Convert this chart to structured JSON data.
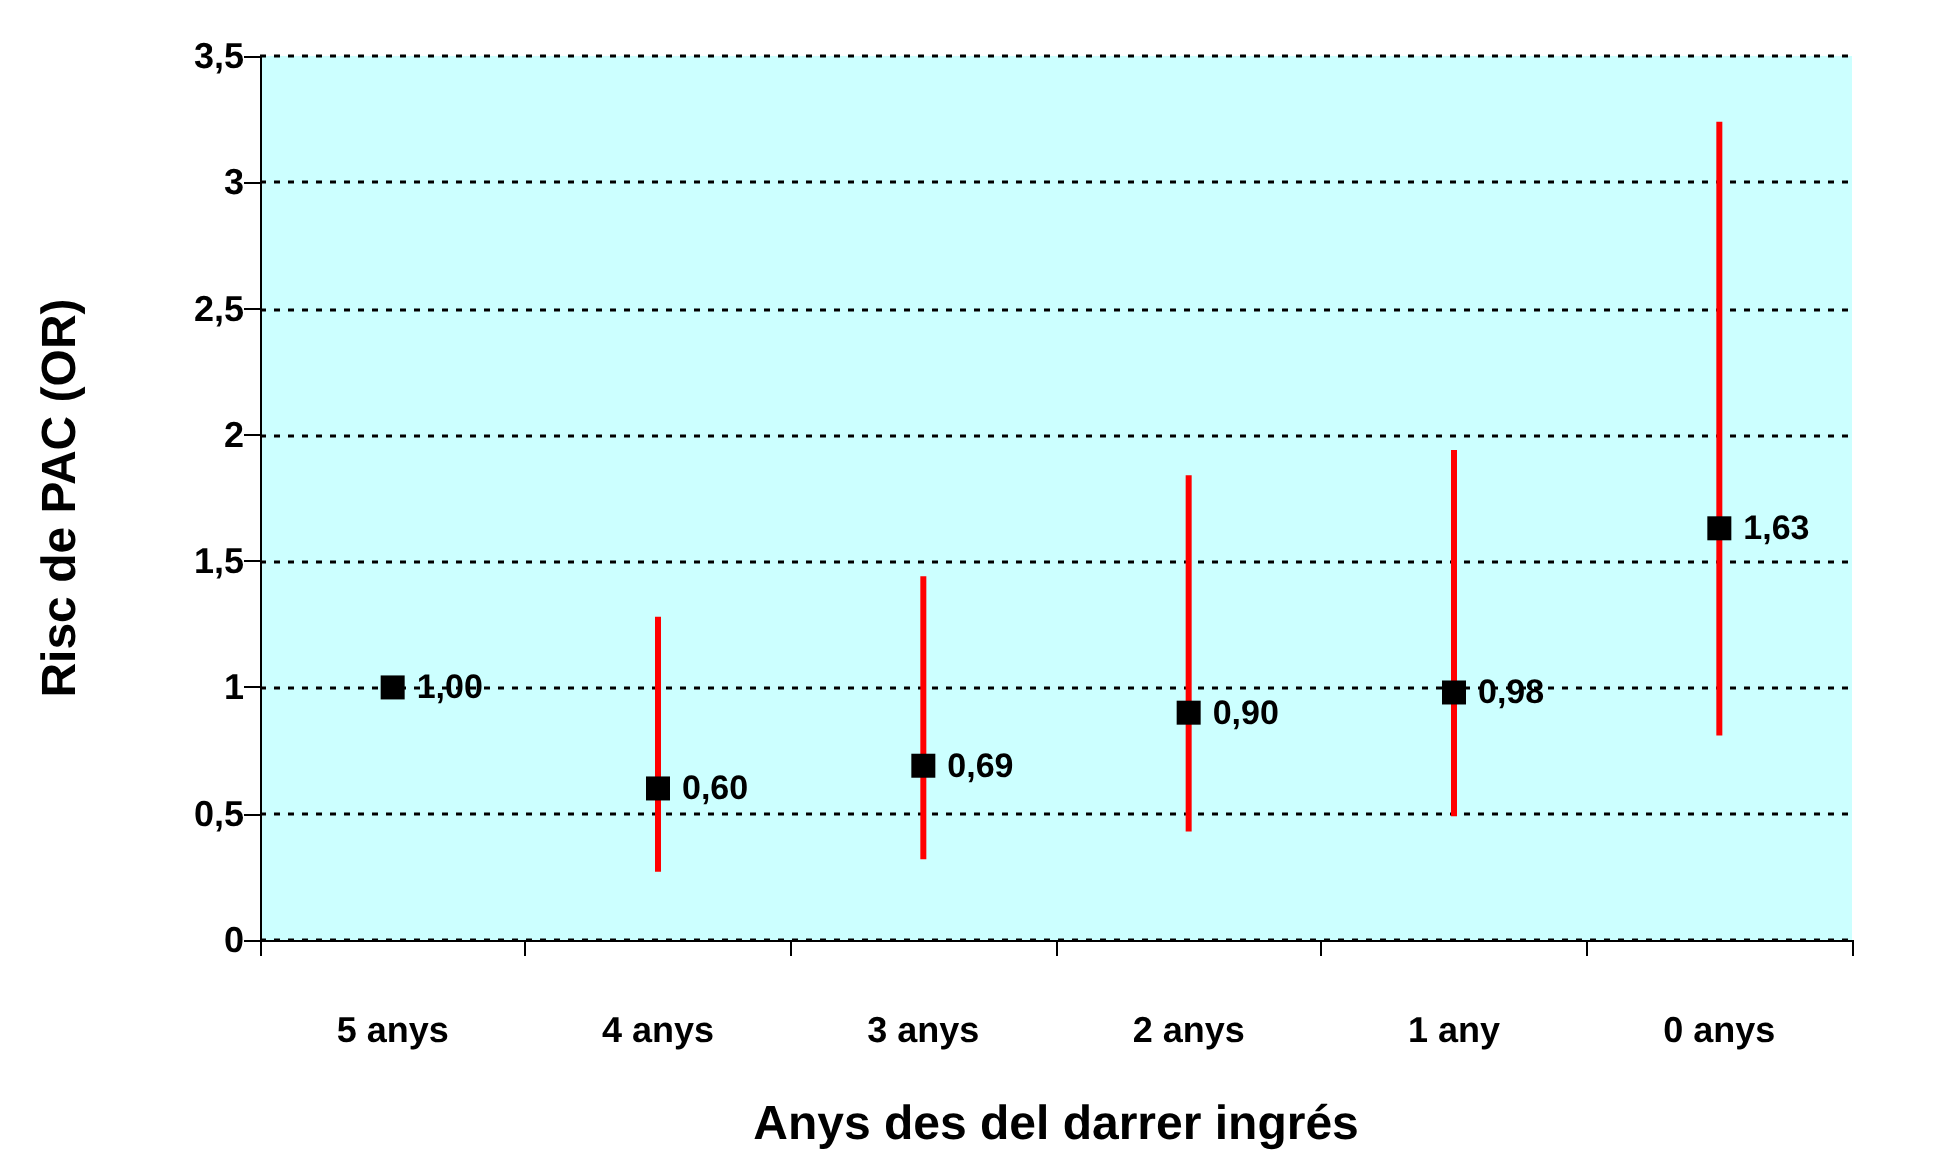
{
  "chart_data": {
    "type": "scatter",
    "xlabel": "Anys des del darrer ingrés",
    "ylabel": "Risc de PAC (OR)",
    "categories": [
      "5 anys",
      "4 anys",
      "3 anys",
      "2 anys",
      "1 any",
      "0 anys"
    ],
    "values": [
      1.0,
      0.6,
      0.69,
      0.9,
      0.98,
      1.63
    ],
    "value_labels": [
      "1,00",
      "0,60",
      "0,69",
      "0,90",
      "0,98",
      "1,63"
    ],
    "errors": [
      null,
      [
        0.27,
        1.28
      ],
      [
        0.32,
        1.44
      ],
      [
        0.43,
        1.84
      ],
      [
        0.49,
        1.94
      ],
      [
        0.81,
        3.24
      ]
    ],
    "color": "#000000",
    "marker": "square",
    "ylim": [
      0,
      3.5
    ],
    "yticks": [
      {
        "value": 0,
        "label": "0"
      },
      {
        "value": 0.5,
        "label": "0,5"
      },
      {
        "value": 1,
        "label": "1"
      },
      {
        "value": 1.5,
        "label": "1,5"
      },
      {
        "value": 2,
        "label": "2"
      },
      {
        "value": 2.5,
        "label": "2,5"
      },
      {
        "value": 3,
        "label": "3"
      },
      {
        "value": 3.5,
        "label": "3,5"
      }
    ],
    "grid": "y"
  }
}
